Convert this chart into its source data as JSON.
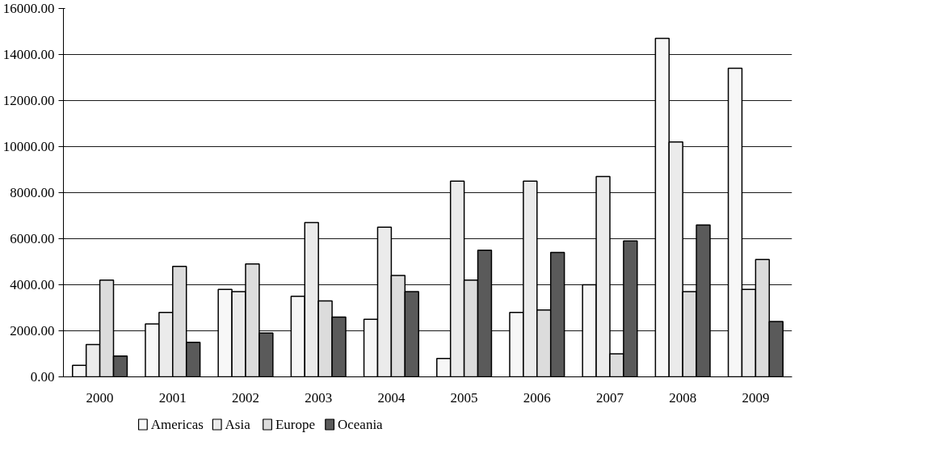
{
  "chart_data": {
    "type": "bar",
    "categories": [
      "2000",
      "2001",
      "2002",
      "2003",
      "2004",
      "2005",
      "2006",
      "2007",
      "2008",
      "2009"
    ],
    "series": [
      {
        "name": "Americas",
        "color": "#f7f7f7",
        "values": [
          500,
          2300,
          3800,
          3500,
          2500,
          800,
          2800,
          4000,
          14700,
          13400
        ]
      },
      {
        "name": "Asia",
        "color": "#ebebeb",
        "values": [
          1400,
          2800,
          3700,
          6700,
          6500,
          8500,
          8500,
          8700,
          10200,
          3800
        ]
      },
      {
        "name": "Europe",
        "color": "#dcdcdc",
        "values": [
          4200,
          4800,
          4900,
          3300,
          4400,
          4200,
          2900,
          1000,
          3700,
          5100
        ]
      },
      {
        "name": "Oceania",
        "color": "#5a5a5a",
        "values": [
          900,
          1500,
          1900,
          2600,
          3700,
          5500,
          5400,
          5900,
          6600,
          2400
        ]
      }
    ],
    "ylim": [
      0,
      16000
    ],
    "yticks": [
      {
        "value": 0,
        "label": "0.00"
      },
      {
        "value": 2000,
        "label": "2000.00"
      },
      {
        "value": 4000,
        "label": "4000.00"
      },
      {
        "value": 6000,
        "label": "6000.00"
      },
      {
        "value": 8000,
        "label": "8000.00"
      },
      {
        "value": 10000,
        "label": "10000.00"
      },
      {
        "value": 12000,
        "label": "12000.00"
      },
      {
        "value": 14000,
        "label": "14000.00"
      },
      {
        "value": 16000,
        "label": "16000.00"
      }
    ],
    "grid": "y",
    "legend": "bottom left"
  }
}
